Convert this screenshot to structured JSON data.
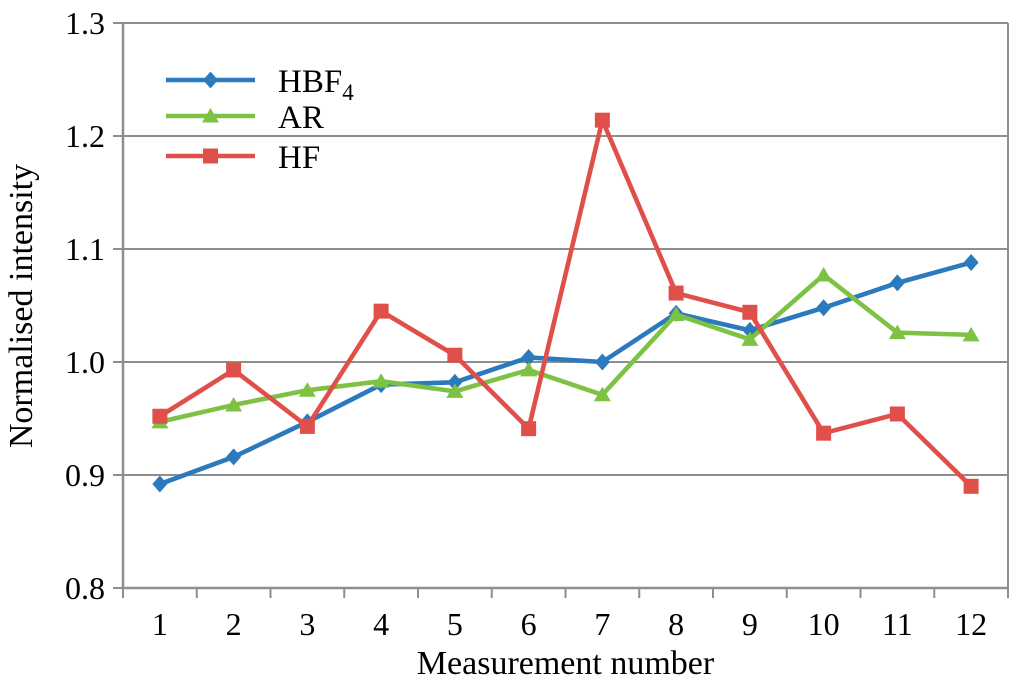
{
  "figure": {
    "background": "#ffffff"
  },
  "chart_data": {
    "type": "line",
    "title": "",
    "xlabel": "Measurement number",
    "ylabel": "Normalised intensity",
    "x": [
      1,
      2,
      3,
      4,
      5,
      6,
      7,
      8,
      9,
      10,
      11,
      12
    ],
    "xtick_labels": [
      "1",
      "2",
      "3",
      "4",
      "5",
      "6",
      "7",
      "8",
      "9",
      "10",
      "11",
      "12"
    ],
    "ylim": [
      0.8,
      1.3
    ],
    "ytick_labels": [
      "0.8",
      "0.9",
      "1.0",
      "1.1",
      "1.2",
      "1.3"
    ],
    "ytick_values": [
      0.8,
      0.9,
      1.0,
      1.1,
      1.2,
      1.3
    ],
    "grid": "horizontal",
    "legend_position": "top-left",
    "axis_color": "#8e8e8e",
    "gridline_color": "#8e8e8e",
    "series": [
      {
        "name": "HBF4",
        "legend_text": "HBF",
        "legend_subscript": "4",
        "color": "#2b7abd",
        "marker": "diamond",
        "values": [
          0.892,
          0.916,
          0.947,
          0.98,
          0.982,
          1.004,
          1.0,
          1.043,
          1.028,
          1.048,
          1.07,
          1.088
        ]
      },
      {
        "name": "AR",
        "legend_text": "AR",
        "legend_subscript": "",
        "color": "#7dc243",
        "marker": "triangle",
        "values": [
          0.947,
          0.962,
          0.975,
          0.983,
          0.974,
          0.993,
          0.971,
          1.042,
          1.02,
          1.077,
          1.026,
          1.024
        ]
      },
      {
        "name": "HF",
        "legend_text": "HF",
        "legend_subscript": "",
        "color": "#e0504a",
        "marker": "square",
        "values": [
          0.952,
          0.993,
          0.943,
          1.045,
          1.006,
          0.941,
          1.214,
          1.061,
          1.044,
          0.937,
          0.954,
          0.89
        ]
      }
    ]
  }
}
